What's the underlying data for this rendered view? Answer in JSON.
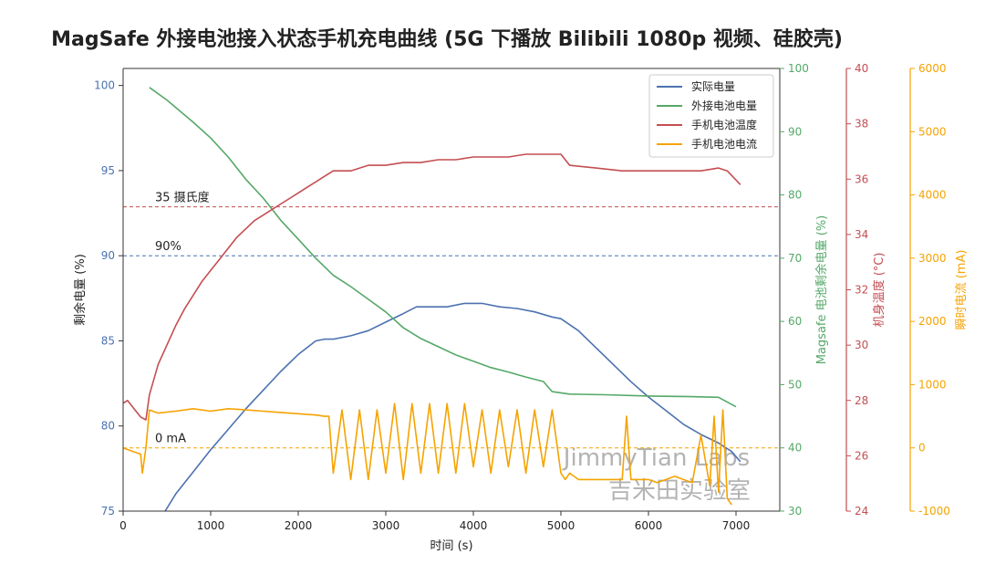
{
  "title": "MagSafe 外接电池接入状态手机充电曲线 (5G 下播放 Bilibili 1080p 视频、硅胶壳)",
  "watermark": {
    "line1": "JimmyTian Labs",
    "line2": "吉米田实验室"
  },
  "colors": {
    "actual": "#4c72b0",
    "external": "#55a868",
    "temp": "#c44e52",
    "current": "#f5a300",
    "axis_left": "#4c72b0",
    "axis_green": "#55a868",
    "axis_red": "#c44e52",
    "axis_orange": "#f5a300"
  },
  "chart_data": {
    "type": "line",
    "title": "MagSafe 外接电池接入状态手机充电曲线 (5G 下播放 Bilibili 1080p 视频、硅胶壳)",
    "xlabel": "时间 (s)",
    "xlim": [
      0,
      7500
    ],
    "xticks": [
      0,
      1000,
      2000,
      3000,
      4000,
      5000,
      6000,
      7000
    ],
    "axes": {
      "left": {
        "label": "剩余电量 (%)",
        "lim": [
          75,
          101
        ],
        "ticks": [
          75,
          80,
          85,
          90,
          95,
          100
        ]
      },
      "right1": {
        "label": "Magsafe 电池剩余电量 (%)",
        "lim": [
          30,
          100
        ],
        "ticks": [
          30,
          40,
          50,
          60,
          70,
          80,
          90,
          100
        ]
      },
      "right2": {
        "label": "机身温度 (°C)",
        "lim": [
          24,
          40
        ],
        "ticks": [
          24,
          26,
          28,
          30,
          32,
          34,
          36,
          38,
          40
        ]
      },
      "right3": {
        "label": "瞬时电流 (mA)",
        "lim": [
          -1000,
          6000
        ],
        "ticks": [
          -1000,
          0,
          1000,
          2000,
          3000,
          4000,
          5000,
          6000
        ]
      }
    },
    "legend": {
      "position": "top-right",
      "entries": [
        "实际电量",
        "外接电池电量",
        "手机电池温度",
        "手机电池电流"
      ]
    },
    "reference_lines": [
      {
        "label": "35 摄氏度",
        "axis": "right2",
        "value": 35,
        "color": "#c44e52"
      },
      {
        "label": "90%",
        "axis": "left",
        "value": 90,
        "color": "#4c72b0"
      },
      {
        "label": "0 mA",
        "axis": "right3",
        "value": 0,
        "color": "#f5a300"
      }
    ],
    "series": [
      {
        "name": "实际电量",
        "axis": "left",
        "color": "#4c72b0",
        "points": [
          [
            480,
            75
          ],
          [
            600,
            76
          ],
          [
            800,
            77.3
          ],
          [
            1000,
            78.6
          ],
          [
            1200,
            79.8
          ],
          [
            1400,
            81
          ],
          [
            1600,
            82.1
          ],
          [
            1800,
            83.2
          ],
          [
            2000,
            84.2
          ],
          [
            2200,
            85
          ],
          [
            2300,
            85.1
          ],
          [
            2400,
            85.1
          ],
          [
            2600,
            85.3
          ],
          [
            2800,
            85.6
          ],
          [
            3000,
            86.1
          ],
          [
            3200,
            86.6
          ],
          [
            3350,
            87
          ],
          [
            3500,
            87
          ],
          [
            3700,
            87
          ],
          [
            3900,
            87.2
          ],
          [
            4100,
            87.2
          ],
          [
            4300,
            87
          ],
          [
            4500,
            86.9
          ],
          [
            4700,
            86.7
          ],
          [
            4900,
            86.4
          ],
          [
            5000,
            86.3
          ],
          [
            5200,
            85.6
          ],
          [
            5400,
            84.6
          ],
          [
            5600,
            83.6
          ],
          [
            5800,
            82.6
          ],
          [
            6000,
            81.7
          ],
          [
            6200,
            80.9
          ],
          [
            6400,
            80.1
          ],
          [
            6600,
            79.5
          ],
          [
            6800,
            79
          ],
          [
            6950,
            78.5
          ],
          [
            7050,
            77.9
          ]
        ]
      },
      {
        "name": "外接电池电量",
        "axis": "right1",
        "color": "#55a868",
        "points": [
          [
            300,
            97
          ],
          [
            500,
            95
          ],
          [
            800,
            91.5
          ],
          [
            1000,
            89
          ],
          [
            1200,
            86
          ],
          [
            1400,
            82.5
          ],
          [
            1600,
            79.5
          ],
          [
            1800,
            76
          ],
          [
            2000,
            73
          ],
          [
            2200,
            70
          ],
          [
            2400,
            67.3
          ],
          [
            2600,
            65.5
          ],
          [
            2800,
            63.5
          ],
          [
            3000,
            61.5
          ],
          [
            3200,
            59
          ],
          [
            3400,
            57.3
          ],
          [
            3600,
            56
          ],
          [
            3800,
            54.7
          ],
          [
            4000,
            53.7
          ],
          [
            4200,
            52.7
          ],
          [
            4400,
            52
          ],
          [
            4600,
            51.2
          ],
          [
            4800,
            50.5
          ],
          [
            4900,
            48.9
          ],
          [
            5100,
            48.5
          ],
          [
            5500,
            48.4
          ],
          [
            6000,
            48.2
          ],
          [
            6500,
            48.1
          ],
          [
            6800,
            48
          ],
          [
            7000,
            46.5
          ]
        ]
      },
      {
        "name": "手机电池温度",
        "axis": "right2",
        "color": "#c44e52",
        "points": [
          [
            0,
            27.9
          ],
          [
            50,
            28
          ],
          [
            150,
            27.6
          ],
          [
            200,
            27.4
          ],
          [
            260,
            27.3
          ],
          [
            300,
            28.2
          ],
          [
            400,
            29.3
          ],
          [
            500,
            30
          ],
          [
            600,
            30.7
          ],
          [
            700,
            31.3
          ],
          [
            800,
            31.8
          ],
          [
            900,
            32.3
          ],
          [
            1000,
            32.7
          ],
          [
            1100,
            33.1
          ],
          [
            1200,
            33.5
          ],
          [
            1300,
            33.9
          ],
          [
            1400,
            34.2
          ],
          [
            1500,
            34.5
          ],
          [
            1600,
            34.7
          ],
          [
            1700,
            34.9
          ],
          [
            1800,
            35.1
          ],
          [
            1900,
            35.3
          ],
          [
            2000,
            35.5
          ],
          [
            2100,
            35.7
          ],
          [
            2200,
            35.9
          ],
          [
            2300,
            36.1
          ],
          [
            2400,
            36.3
          ],
          [
            2600,
            36.3
          ],
          [
            2800,
            36.5
          ],
          [
            3000,
            36.5
          ],
          [
            3200,
            36.6
          ],
          [
            3400,
            36.6
          ],
          [
            3600,
            36.7
          ],
          [
            3800,
            36.7
          ],
          [
            4000,
            36.8
          ],
          [
            4200,
            36.8
          ],
          [
            4400,
            36.8
          ],
          [
            4600,
            36.9
          ],
          [
            4800,
            36.9
          ],
          [
            5000,
            36.9
          ],
          [
            5100,
            36.5
          ],
          [
            5400,
            36.4
          ],
          [
            5700,
            36.3
          ],
          [
            6000,
            36.3
          ],
          [
            6400,
            36.3
          ],
          [
            6600,
            36.3
          ],
          [
            6800,
            36.4
          ],
          [
            6900,
            36.3
          ],
          [
            7050,
            35.8
          ]
        ]
      },
      {
        "name": "手机电池电流",
        "axis": "right3",
        "color": "#f5a300",
        "points": [
          [
            0,
            0
          ],
          [
            100,
            -50
          ],
          [
            200,
            -100
          ],
          [
            220,
            -400
          ],
          [
            260,
            0
          ],
          [
            300,
            600
          ],
          [
            400,
            550
          ],
          [
            600,
            580
          ],
          [
            800,
            620
          ],
          [
            1000,
            580
          ],
          [
            1200,
            620
          ],
          [
            1400,
            600
          ],
          [
            1600,
            580
          ],
          [
            1800,
            560
          ],
          [
            2000,
            540
          ],
          [
            2200,
            520
          ],
          [
            2300,
            500
          ],
          [
            2350,
            500
          ],
          [
            2400,
            -400
          ],
          [
            2500,
            600
          ],
          [
            2600,
            -500
          ],
          [
            2700,
            600
          ],
          [
            2800,
            -500
          ],
          [
            2900,
            600
          ],
          [
            3000,
            -400
          ],
          [
            3100,
            700
          ],
          [
            3200,
            -500
          ],
          [
            3300,
            700
          ],
          [
            3400,
            -400
          ],
          [
            3500,
            700
          ],
          [
            3600,
            -400
          ],
          [
            3700,
            700
          ],
          [
            3800,
            -400
          ],
          [
            3900,
            700
          ],
          [
            4000,
            -300
          ],
          [
            4100,
            600
          ],
          [
            4200,
            -400
          ],
          [
            4300,
            600
          ],
          [
            4400,
            -300
          ],
          [
            4500,
            600
          ],
          [
            4600,
            -400
          ],
          [
            4700,
            600
          ],
          [
            4800,
            -300
          ],
          [
            4900,
            600
          ],
          [
            5000,
            -400
          ],
          [
            5050,
            -500
          ],
          [
            5100,
            -400
          ],
          [
            5200,
            -500
          ],
          [
            5400,
            -500
          ],
          [
            5600,
            -500
          ],
          [
            5700,
            -500
          ],
          [
            5750,
            500
          ],
          [
            5800,
            -500
          ],
          [
            6000,
            -500
          ],
          [
            6100,
            -550
          ],
          [
            6200,
            -500
          ],
          [
            6300,
            -450
          ],
          [
            6400,
            -500
          ],
          [
            6500,
            -550
          ],
          [
            6600,
            200
          ],
          [
            6700,
            -600
          ],
          [
            6750,
            500
          ],
          [
            6800,
            -700
          ],
          [
            6850,
            600
          ],
          [
            6900,
            -800
          ],
          [
            6950,
            -900
          ]
        ]
      }
    ]
  }
}
